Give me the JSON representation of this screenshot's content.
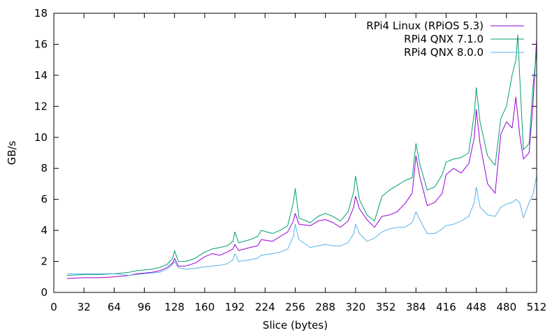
{
  "chart_data": {
    "type": "line",
    "title": "",
    "xlabel": "Slice (bytes)",
    "ylabel": "GB/s",
    "xlim": [
      0,
      512
    ],
    "ylim": [
      0,
      18
    ],
    "xticks": [
      "0",
      "32",
      "64",
      "96",
      "128",
      "160",
      "192",
      "224",
      "256",
      "288",
      "320",
      "352",
      "384",
      "416",
      "448",
      "480",
      "512"
    ],
    "yticks": [
      "0",
      "2",
      "4",
      "6",
      "8",
      "10",
      "12",
      "14",
      "16",
      "18"
    ],
    "legend_position": "top-right",
    "grid": false,
    "series": [
      {
        "name": "RPi4 Linux (RPiOS 5.3)",
        "color": "#9400d3",
        "points": [
          [
            14,
            0.9
          ],
          [
            32,
            0.95
          ],
          [
            48,
            0.95
          ],
          [
            64,
            1.0
          ],
          [
            72,
            1.05
          ],
          [
            80,
            1.1
          ],
          [
            88,
            1.2
          ],
          [
            96,
            1.25
          ],
          [
            104,
            1.3
          ],
          [
            112,
            1.4
          ],
          [
            120,
            1.6
          ],
          [
            126,
            1.9
          ],
          [
            128,
            2.2
          ],
          [
            132,
            1.7
          ],
          [
            140,
            1.7
          ],
          [
            150,
            1.9
          ],
          [
            160,
            2.3
          ],
          [
            168,
            2.5
          ],
          [
            176,
            2.4
          ],
          [
            184,
            2.6
          ],
          [
            190,
            2.8
          ],
          [
            192,
            3.1
          ],
          [
            196,
            2.7
          ],
          [
            208,
            2.9
          ],
          [
            216,
            3.0
          ],
          [
            220,
            3.4
          ],
          [
            232,
            3.3
          ],
          [
            240,
            3.6
          ],
          [
            248,
            3.9
          ],
          [
            254,
            4.6
          ],
          [
            256,
            5.1
          ],
          [
            260,
            4.4
          ],
          [
            272,
            4.3
          ],
          [
            280,
            4.6
          ],
          [
            288,
            4.7
          ],
          [
            296,
            4.5
          ],
          [
            304,
            4.2
          ],
          [
            312,
            4.6
          ],
          [
            318,
            5.5
          ],
          [
            320,
            6.2
          ],
          [
            324,
            5.4
          ],
          [
            332,
            4.7
          ],
          [
            340,
            4.2
          ],
          [
            348,
            4.9
          ],
          [
            356,
            5.0
          ],
          [
            364,
            5.2
          ],
          [
            372,
            5.7
          ],
          [
            380,
            6.4
          ],
          [
            384,
            8.8
          ],
          [
            388,
            7.5
          ],
          [
            396,
            5.6
          ],
          [
            404,
            5.8
          ],
          [
            412,
            6.4
          ],
          [
            416,
            7.6
          ],
          [
            424,
            8.0
          ],
          [
            432,
            7.7
          ],
          [
            440,
            8.3
          ],
          [
            446,
            10.0
          ],
          [
            448,
            11.8
          ],
          [
            452,
            9.6
          ],
          [
            460,
            7.0
          ],
          [
            468,
            6.4
          ],
          [
            474,
            10.2
          ],
          [
            480,
            11.0
          ],
          [
            486,
            10.6
          ],
          [
            490,
            12.6
          ],
          [
            494,
            10.2
          ],
          [
            498,
            8.6
          ],
          [
            504,
            9.0
          ],
          [
            508,
            12.0
          ],
          [
            512,
            16.3
          ]
        ]
      },
      {
        "name": "RPi4 QNX 7.1.0",
        "color": "#009e73",
        "points": [
          [
            14,
            1.1
          ],
          [
            32,
            1.15
          ],
          [
            48,
            1.15
          ],
          [
            64,
            1.2
          ],
          [
            72,
            1.25
          ],
          [
            80,
            1.3
          ],
          [
            88,
            1.4
          ],
          [
            96,
            1.45
          ],
          [
            104,
            1.5
          ],
          [
            112,
            1.6
          ],
          [
            120,
            1.8
          ],
          [
            126,
            2.2
          ],
          [
            128,
            2.7
          ],
          [
            132,
            2.0
          ],
          [
            140,
            2.0
          ],
          [
            150,
            2.2
          ],
          [
            160,
            2.6
          ],
          [
            168,
            2.8
          ],
          [
            176,
            2.9
          ],
          [
            184,
            3.0
          ],
          [
            190,
            3.3
          ],
          [
            192,
            3.9
          ],
          [
            196,
            3.2
          ],
          [
            208,
            3.4
          ],
          [
            216,
            3.6
          ],
          [
            220,
            4.0
          ],
          [
            232,
            3.8
          ],
          [
            240,
            4.0
          ],
          [
            248,
            4.3
          ],
          [
            254,
            5.8
          ],
          [
            256,
            6.7
          ],
          [
            260,
            4.8
          ],
          [
            272,
            4.5
          ],
          [
            280,
            4.9
          ],
          [
            288,
            5.1
          ],
          [
            296,
            4.9
          ],
          [
            304,
            4.6
          ],
          [
            312,
            5.2
          ],
          [
            318,
            6.5
          ],
          [
            320,
            7.5
          ],
          [
            324,
            6.0
          ],
          [
            332,
            5.0
          ],
          [
            340,
            4.6
          ],
          [
            348,
            6.2
          ],
          [
            356,
            6.6
          ],
          [
            364,
            6.9
          ],
          [
            372,
            7.2
          ],
          [
            380,
            7.4
          ],
          [
            384,
            9.6
          ],
          [
            388,
            8.3
          ],
          [
            396,
            6.6
          ],
          [
            404,
            6.8
          ],
          [
            412,
            7.6
          ],
          [
            416,
            8.4
          ],
          [
            424,
            8.6
          ],
          [
            432,
            8.7
          ],
          [
            440,
            9.0
          ],
          [
            446,
            11.6
          ],
          [
            448,
            13.2
          ],
          [
            452,
            11.0
          ],
          [
            460,
            8.8
          ],
          [
            468,
            8.2
          ],
          [
            474,
            11.2
          ],
          [
            480,
            12.0
          ],
          [
            486,
            14.0
          ],
          [
            490,
            15.0
          ],
          [
            492,
            16.6
          ],
          [
            494,
            14.0
          ],
          [
            498,
            9.2
          ],
          [
            504,
            9.6
          ],
          [
            508,
            13.2
          ],
          [
            512,
            15.6
          ]
        ]
      },
      {
        "name": "RPi4 QNX 8.0.0",
        "color": "#56b4e9",
        "points": [
          [
            14,
            1.2
          ],
          [
            32,
            1.2
          ],
          [
            48,
            1.2
          ],
          [
            64,
            1.2
          ],
          [
            72,
            1.15
          ],
          [
            80,
            1.1
          ],
          [
            88,
            1.15
          ],
          [
            96,
            1.2
          ],
          [
            104,
            1.25
          ],
          [
            112,
            1.3
          ],
          [
            120,
            1.5
          ],
          [
            126,
            1.8
          ],
          [
            128,
            2.0
          ],
          [
            132,
            1.6
          ],
          [
            140,
            1.5
          ],
          [
            150,
            1.55
          ],
          [
            160,
            1.65
          ],
          [
            168,
            1.7
          ],
          [
            176,
            1.75
          ],
          [
            184,
            1.85
          ],
          [
            190,
            2.1
          ],
          [
            192,
            2.5
          ],
          [
            196,
            2.0
          ],
          [
            208,
            2.1
          ],
          [
            216,
            2.2
          ],
          [
            220,
            2.4
          ],
          [
            232,
            2.5
          ],
          [
            240,
            2.6
          ],
          [
            248,
            2.8
          ],
          [
            254,
            3.6
          ],
          [
            256,
            4.4
          ],
          [
            260,
            3.4
          ],
          [
            272,
            2.9
          ],
          [
            280,
            3.0
          ],
          [
            288,
            3.1
          ],
          [
            296,
            3.0
          ],
          [
            304,
            3.0
          ],
          [
            312,
            3.2
          ],
          [
            318,
            3.8
          ],
          [
            320,
            4.4
          ],
          [
            324,
            3.8
          ],
          [
            332,
            3.3
          ],
          [
            340,
            3.5
          ],
          [
            348,
            3.9
          ],
          [
            356,
            4.1
          ],
          [
            364,
            4.2
          ],
          [
            372,
            4.2
          ],
          [
            380,
            4.5
          ],
          [
            384,
            5.2
          ],
          [
            388,
            4.7
          ],
          [
            396,
            3.8
          ],
          [
            404,
            3.8
          ],
          [
            412,
            4.1
          ],
          [
            416,
            4.3
          ],
          [
            424,
            4.4
          ],
          [
            432,
            4.6
          ],
          [
            440,
            4.9
          ],
          [
            446,
            5.8
          ],
          [
            448,
            6.8
          ],
          [
            452,
            5.5
          ],
          [
            460,
            5.0
          ],
          [
            468,
            4.9
          ],
          [
            474,
            5.5
          ],
          [
            480,
            5.7
          ],
          [
            486,
            5.8
          ],
          [
            490,
            6.0
          ],
          [
            494,
            5.8
          ],
          [
            498,
            4.8
          ],
          [
            504,
            5.8
          ],
          [
            508,
            6.3
          ],
          [
            512,
            7.5
          ]
        ]
      }
    ]
  }
}
